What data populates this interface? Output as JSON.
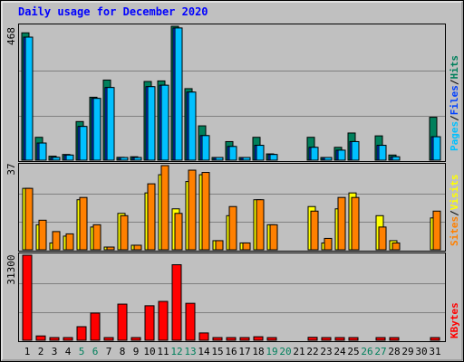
{
  "title": "Daily usage for December 2020",
  "panels": {
    "top": {
      "max_label": "468",
      "legend": [
        "Pages",
        "/",
        "Files",
        "/",
        "Hits"
      ]
    },
    "mid": {
      "max_label": "37",
      "legend": [
        "Sites",
        "/",
        "Visits"
      ]
    },
    "bot": {
      "max_label": "31300",
      "legend": [
        "KBytes"
      ]
    }
  },
  "colors": {
    "hits": "#00805c",
    "files": "#0040ff",
    "pages": "#00c0ff",
    "visits": "#ff8000",
    "sites": "#ffff00",
    "kbytes": "#ff0000",
    "weekday": "#000000",
    "weekend": "#00805c",
    "background": "#c0c0c0",
    "title": "#0000ff"
  },
  "chart_data": [
    {
      "type": "bar",
      "title": "Daily usage for December 2020",
      "categories": [
        "1",
        "2",
        "3",
        "4",
        "5",
        "6",
        "7",
        "8",
        "9",
        "10",
        "11",
        "12",
        "13",
        "14",
        "15",
        "16",
        "17",
        "18",
        "19",
        "20",
        "21",
        "22",
        "23",
        "24",
        "25",
        "26",
        "27",
        "28",
        "29",
        "30",
        "31"
      ],
      "weekend_days": [
        "5",
        "6",
        "12",
        "13",
        "19",
        "20",
        "26",
        "27"
      ],
      "ylim": [
        0,
        468
      ],
      "series": [
        {
          "name": "Hits",
          "values": [
            445,
            80,
            14,
            20,
            135,
            220,
            280,
            10,
            12,
            275,
            277,
            468,
            250,
            120,
            8,
            65,
            6,
            80,
            22,
            0,
            0,
            80,
            8,
            45,
            95,
            0,
            85,
            18,
            0,
            0,
            150
          ]
        },
        {
          "name": "Files",
          "values": [
            430,
            60,
            10,
            18,
            118,
            216,
            254,
            5,
            9,
            257,
            262,
            462,
            238,
            86,
            6,
            48,
            5,
            52,
            20,
            0,
            0,
            45,
            5,
            35,
            65,
            0,
            52,
            12,
            0,
            0,
            82
          ]
        },
        {
          "name": "Pages",
          "values": [
            430,
            60,
            10,
            18,
            118,
            216,
            254,
            5,
            9,
            257,
            262,
            462,
            238,
            86,
            6,
            48,
            5,
            52,
            20,
            0,
            0,
            45,
            5,
            35,
            65,
            0,
            52,
            12,
            0,
            0,
            82
          ]
        }
      ]
    },
    {
      "type": "bar",
      "categories": [
        "1",
        "2",
        "3",
        "4",
        "5",
        "6",
        "7",
        "8",
        "9",
        "10",
        "11",
        "12",
        "13",
        "14",
        "15",
        "16",
        "17",
        "18",
        "19",
        "20",
        "21",
        "22",
        "23",
        "24",
        "25",
        "26",
        "27",
        "28",
        "29",
        "30",
        "31"
      ],
      "ylim": [
        0,
        37
      ],
      "series": [
        {
          "name": "Sites",
          "values": [
            27,
            11,
            3,
            6,
            22,
            10,
            1,
            16,
            2,
            25,
            33,
            18,
            30,
            33,
            4,
            15,
            3,
            22,
            11,
            0,
            0,
            19,
            3,
            18,
            25,
            0,
            15,
            4,
            0,
            0,
            14
          ]
        },
        {
          "name": "Visits",
          "values": [
            27,
            13,
            8,
            7,
            23,
            11,
            1,
            15,
            2,
            29,
            37,
            16,
            35,
            34,
            4,
            19,
            3,
            22,
            11,
            0,
            0,
            17,
            5,
            23,
            23,
            0,
            10,
            3,
            0,
            0,
            17
          ]
        }
      ]
    },
    {
      "type": "bar",
      "categories": [
        "1",
        "2",
        "3",
        "4",
        "5",
        "6",
        "7",
        "8",
        "9",
        "10",
        "11",
        "12",
        "13",
        "14",
        "15",
        "16",
        "17",
        "18",
        "19",
        "20",
        "21",
        "22",
        "23",
        "24",
        "25",
        "26",
        "27",
        "28",
        "29",
        "30",
        "31"
      ],
      "ylim": [
        0,
        31300
      ],
      "series": [
        {
          "name": "KBytes",
          "values": [
            31300,
            1600,
            350,
            350,
            5000,
            10000,
            300,
            13300,
            300,
            12700,
            14300,
            27800,
            13600,
            2700,
            300,
            250,
            300,
            1300,
            450,
            0,
            0,
            1100,
            450,
            450,
            800,
            0,
            800,
            450,
            0,
            0,
            800
          ]
        }
      ]
    }
  ]
}
